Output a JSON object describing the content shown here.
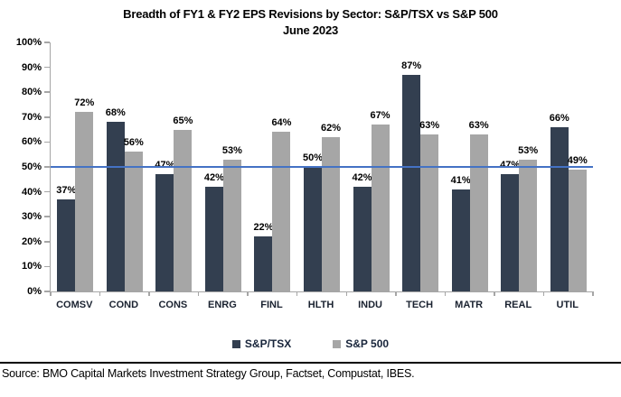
{
  "title": {
    "line1": "Breadth of FY1 & FY2 EPS Revisions by Sector: S&P/TSX vs S&P 500",
    "line2": "June 2023"
  },
  "source_text": "Source: BMO Capital Markets Investment Strategy Group, Factset, Compustat, IBES.",
  "colors": {
    "series1": "#333f50",
    "series2": "#a6a6a6",
    "reference_line": "#4472c4",
    "axis": "#a6a6a6",
    "text": "#000000"
  },
  "chart_data": {
    "type": "bar",
    "title": "Breadth of FY1 & FY2 EPS Revisions by Sector: S&P/TSX vs S&P 500",
    "subtitle": "June 2023",
    "categories": [
      "COMSV",
      "COND",
      "CONS",
      "ENRG",
      "FINL",
      "HLTH",
      "INDU",
      "TECH",
      "MATR",
      "REAL",
      "UTIL"
    ],
    "series": [
      {
        "name": "S&P/TSX",
        "color": "#333f50",
        "values": [
          37,
          68,
          47,
          42,
          22,
          50,
          42,
          87,
          41,
          47,
          66
        ]
      },
      {
        "name": "S&P 500",
        "color": "#a6a6a6",
        "values": [
          72,
          56,
          65,
          53,
          64,
          62,
          67,
          63,
          63,
          53,
          49
        ]
      }
    ],
    "value_label_suffix": "%",
    "ylim": [
      0,
      100
    ],
    "ytick_step": 10,
    "ytick_suffix": "%",
    "grid": false,
    "reference_line": {
      "value": 50,
      "color": "#4472c4"
    },
    "legend_position": "bottom"
  }
}
